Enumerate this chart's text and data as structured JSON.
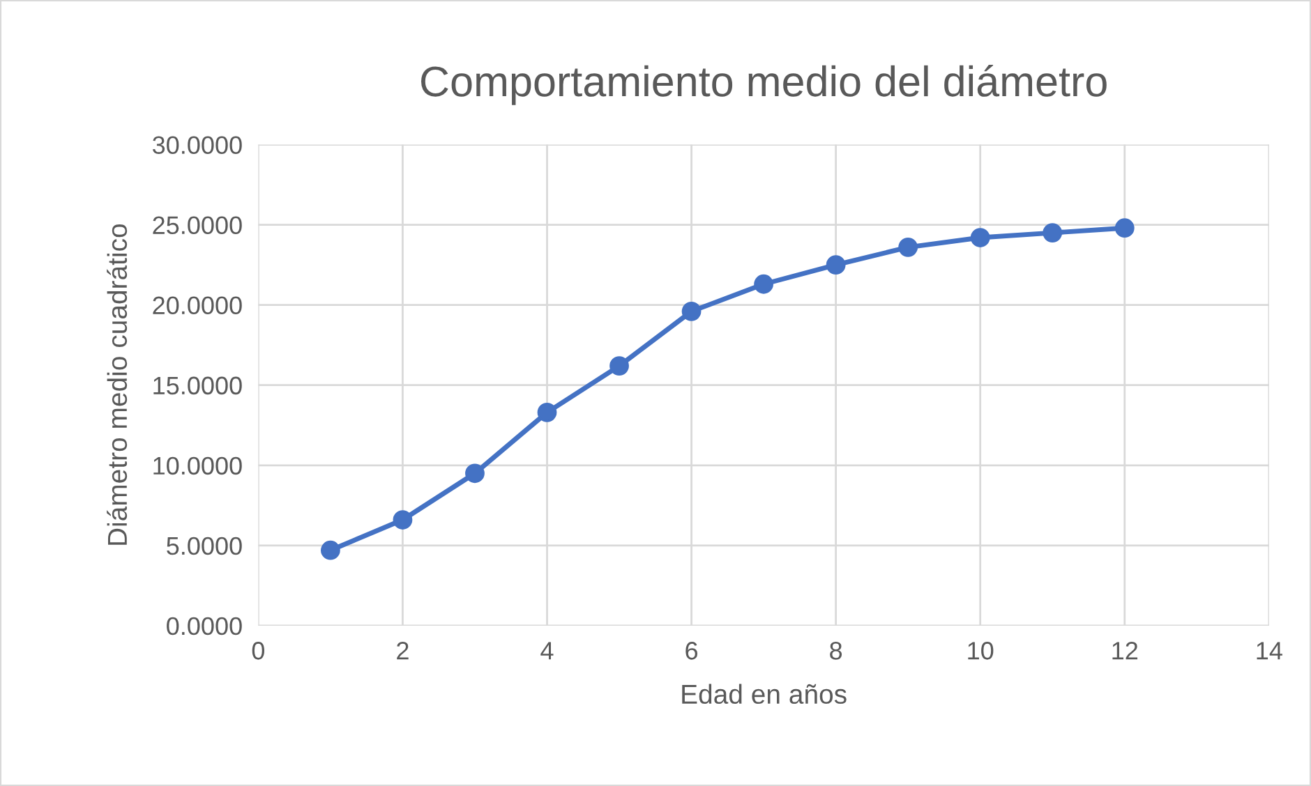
{
  "chart_data": {
    "type": "line",
    "title": "Comportamiento medio del diámetro",
    "xlabel": "Edad en años",
    "ylabel": "Diámetro medio cuadrático",
    "x": [
      1,
      2,
      3,
      4,
      5,
      6,
      7,
      8,
      9,
      10,
      11,
      12
    ],
    "series": [
      {
        "color": "#4472c4",
        "values": [
          4.7,
          6.6,
          9.5,
          13.3,
          16.2,
          19.6,
          21.3,
          22.5,
          23.6,
          24.2,
          24.5,
          24.8
        ]
      }
    ],
    "xlim": [
      0,
      14
    ],
    "xticks": [
      0,
      2,
      4,
      6,
      8,
      10,
      12,
      14
    ],
    "ylim": [
      0,
      30
    ],
    "yticks": [
      {
        "value": 0,
        "label": "0.0000"
      },
      {
        "value": 5,
        "label": "5.0000"
      },
      {
        "value": 10,
        "label": "10.0000"
      },
      {
        "value": 15,
        "label": "15.0000"
      },
      {
        "value": 20,
        "label": "20.0000"
      },
      {
        "value": 25,
        "label": "25.0000"
      },
      {
        "value": 30,
        "label": "30.0000"
      }
    ],
    "grid": true,
    "marker": "circle",
    "line_style": "solid"
  }
}
